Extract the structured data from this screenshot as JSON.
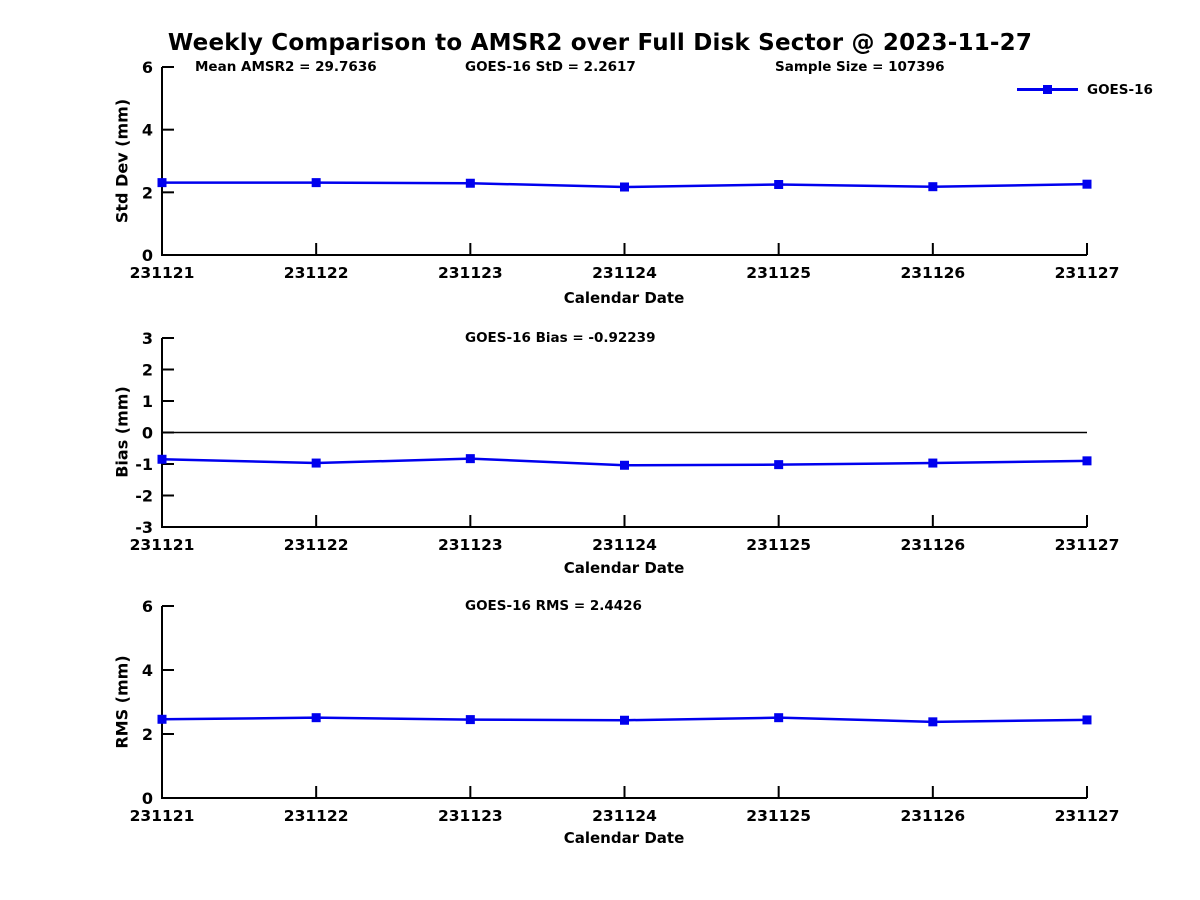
{
  "header": {
    "title": "Weekly Comparison to AMSR2 over Full Disk Sector @ 2023-11-27"
  },
  "legend": {
    "label": "GOES-16",
    "color": "#0000ee"
  },
  "colors": {
    "series": "#0000ee",
    "axis": "#000000"
  },
  "chart_data": [
    {
      "type": "line",
      "name": "std-dev",
      "annotations": [
        "Mean AMSR2 = 29.7636",
        "GOES-16 StD = 2.2617",
        "Sample Size = 107396"
      ],
      "ylabel": "Std Dev (mm)",
      "xlabel": "Calendar Date",
      "categories": [
        "231121",
        "231122",
        "231123",
        "231124",
        "231125",
        "231126",
        "231127"
      ],
      "yticks": [
        0,
        2,
        4,
        6
      ],
      "ylim": [
        0,
        6
      ],
      "zero_line": false,
      "legend_position": "top-right",
      "grid": false,
      "series": [
        {
          "name": "GOES-16",
          "values": [
            2.31,
            2.31,
            2.29,
            2.17,
            2.25,
            2.18,
            2.26
          ]
        }
      ]
    },
    {
      "type": "line",
      "name": "bias",
      "title": "GOES-16 Bias  = -0.92239",
      "ylabel": "Bias (mm)",
      "xlabel": "Calendar Date",
      "categories": [
        "231121",
        "231122",
        "231123",
        "231124",
        "231125",
        "231126",
        "231127"
      ],
      "yticks": [
        -3,
        -2,
        -1,
        0,
        1,
        2,
        3
      ],
      "ylim": [
        -3,
        3
      ],
      "zero_line": true,
      "grid": false,
      "series": [
        {
          "name": "GOES-16",
          "values": [
            -0.85,
            -0.97,
            -0.83,
            -1.04,
            -1.02,
            -0.97,
            -0.9
          ]
        }
      ]
    },
    {
      "type": "line",
      "name": "rms",
      "title": "GOES-16 RMS = 2.4426",
      "ylabel": "RMS (mm)",
      "xlabel": "Calendar Date",
      "categories": [
        "231121",
        "231122",
        "231123",
        "231124",
        "231125",
        "231126",
        "231127"
      ],
      "yticks": [
        0,
        2,
        4,
        6
      ],
      "ylim": [
        0,
        6
      ],
      "zero_line": false,
      "grid": false,
      "series": [
        {
          "name": "GOES-16",
          "values": [
            2.46,
            2.51,
            2.45,
            2.43,
            2.51,
            2.38,
            2.44
          ]
        }
      ]
    }
  ]
}
